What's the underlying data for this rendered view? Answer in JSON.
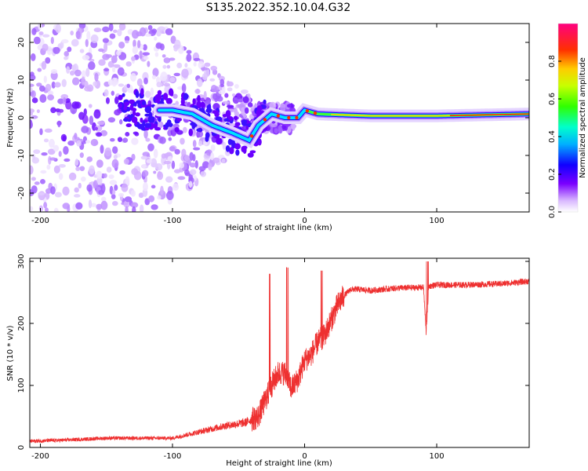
{
  "title": "S135.2022.352.10.04.G32",
  "chart_data": [
    {
      "type": "heatmap",
      "xlabel": "Height of straight line (km)",
      "ylabel": "Frequency (Hz)",
      "xlim": [
        -208,
        170
      ],
      "ylim": [
        -25,
        25
      ],
      "xticks": [
        -200,
        -100,
        0,
        100
      ],
      "yticks": [
        -20,
        -10,
        0,
        10,
        20
      ],
      "colorbar": {
        "label": "Normalized spectral amplitude",
        "ticks": [
          0.0,
          0.2,
          0.4,
          0.6,
          0.8
        ],
        "range": [
          0,
          1
        ]
      },
      "ridge": {
        "description_points": [
          {
            "x": -100,
            "y": 2
          },
          {
            "x": -85,
            "y": 1
          },
          {
            "x": -70,
            "y": -2
          },
          {
            "x": -55,
            "y": -4
          },
          {
            "x": -42,
            "y": -6
          },
          {
            "x": -35,
            "y": -2
          },
          {
            "x": -25,
            "y": 1
          },
          {
            "x": -15,
            "y": 0
          },
          {
            "x": -5,
            "y": 0
          },
          {
            "x": 0,
            "y": 2
          },
          {
            "x": 10,
            "y": 1
          },
          {
            "x": 50,
            "y": 0.5
          },
          {
            "x": 100,
            "y": 0.5
          },
          {
            "x": 170,
            "y": 1
          }
        ]
      }
    },
    {
      "type": "line",
      "xlabel": "Height of straight line (km)",
      "ylabel": "SNR (10 * v/v)",
      "xlim": [
        -208,
        170
      ],
      "ylim": [
        0,
        305
      ],
      "xticks": [
        -200,
        -100,
        0,
        100
      ],
      "yticks": [
        0,
        100,
        200,
        300
      ],
      "series": [
        {
          "color": "#ee3030",
          "x": [
            -208,
            -180,
            -150,
            -120,
            -100,
            -80,
            -60,
            -45,
            -35,
            -30,
            -25,
            -20,
            -15,
            -10,
            -5,
            0,
            5,
            10,
            15,
            20,
            25,
            30,
            35,
            40,
            50,
            70,
            90,
            92,
            94,
            100,
            120,
            150,
            170
          ],
          "values": [
            10,
            12,
            15,
            15,
            15,
            25,
            35,
            40,
            50,
            75,
            100,
            120,
            120,
            95,
            110,
            140,
            150,
            170,
            180,
            205,
            230,
            245,
            255,
            255,
            253,
            257,
            258,
            185,
            260,
            262,
            262,
            264,
            268
          ]
        }
      ]
    }
  ]
}
